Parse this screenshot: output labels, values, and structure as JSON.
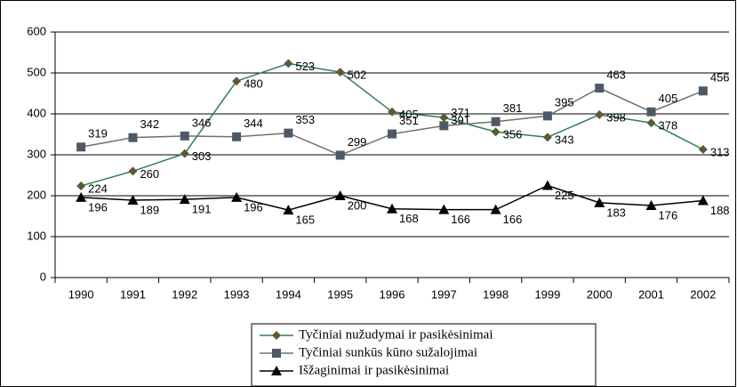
{
  "chart_data": {
    "type": "line",
    "categories": [
      "1990",
      "1991",
      "1992",
      "1993",
      "1994",
      "1995",
      "1996",
      "1997",
      "1998",
      "1999",
      "2000",
      "2001",
      "2002"
    ],
    "series": [
      {
        "name": "Tyčiniai nužudymai ir  pasikėsinimai",
        "color": "#2e7d5a",
        "marker": "diamond",
        "marker_color": "#5c5a33",
        "values": [
          224,
          260,
          303,
          480,
          523,
          502,
          405,
          391,
          356,
          343,
          398,
          378,
          313
        ]
      },
      {
        "name": "Tyčiniai sunkūs  kūno sužalojimai",
        "color": "#707070",
        "marker": "square",
        "marker_color": "#4d5a66",
        "values": [
          319,
          342,
          346,
          344,
          353,
          299,
          351,
          371,
          381,
          395,
          463,
          405,
          456
        ]
      },
      {
        "name": "Išžaginimai ir pasikėsinimai",
        "color": "#000000",
        "marker": "triangle",
        "marker_color": "#000000",
        "values": [
          196,
          189,
          191,
          196,
          165,
          200,
          168,
          166,
          166,
          225,
          183,
          176,
          188
        ]
      }
    ],
    "ylim": [
      0,
      600
    ],
    "yticks": [
      0,
      100,
      200,
      300,
      400,
      500,
      600
    ],
    "grid": true
  }
}
